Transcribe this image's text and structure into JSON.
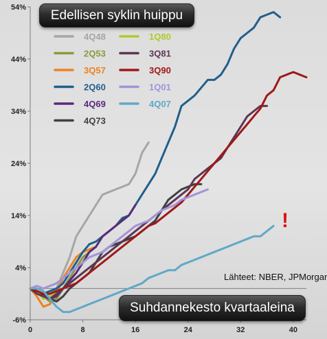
{
  "title": "Edellisen syklin huippu",
  "xlabel": "Suhdannekesto kvartaaleina",
  "source_note": "Lähteet: NBER, JPMorgan",
  "exclamation": "!",
  "chart_data": {
    "type": "line",
    "title": "Edellisen syklin huippu",
    "xlabel": "Suhdannekesto kvartaaleina",
    "ylabel": "",
    "xlim": [
      0,
      42
    ],
    "ylim": [
      -6,
      54
    ],
    "x_ticks": [
      0,
      8,
      16,
      24,
      32,
      40
    ],
    "y_ticks": [
      -6,
      4,
      14,
      24,
      34,
      44,
      54
    ],
    "y_tick_labels": [
      "-6%",
      "4%",
      "14%",
      "24%",
      "34%",
      "44%",
      "54%"
    ],
    "grid": false,
    "legend": "top-left",
    "series": [
      {
        "name": "4Q48",
        "color": "#a6a6a6",
        "x": [
          0,
          1,
          2,
          3,
          4,
          5,
          6,
          7,
          8,
          9,
          10,
          11,
          12,
          13,
          14,
          15,
          16,
          17,
          18
        ],
        "y": [
          0,
          -1,
          -1.5,
          -1,
          0,
          3,
          6,
          10,
          12,
          14,
          16,
          18,
          18.5,
          19,
          19.5,
          20,
          22,
          26,
          28
        ]
      },
      {
        "name": "2Q53",
        "color": "#8a9a3a",
        "x": [
          0,
          1,
          2,
          3,
          4,
          5,
          6,
          7,
          8,
          9,
          10
        ],
        "y": [
          0,
          -0.5,
          -1.5,
          -2.5,
          -2,
          0,
          2,
          4,
          6,
          7,
          8
        ]
      },
      {
        "name": "3Q57",
        "color": "#f08020",
        "x": [
          0,
          1,
          2,
          3,
          4,
          5,
          6,
          7,
          8,
          9,
          10
        ],
        "y": [
          0,
          -1.5,
          -3.5,
          -3,
          -1,
          2,
          4,
          6,
          7,
          7.5,
          8
        ]
      },
      {
        "name": "2Q60",
        "color": "#1f5f8b",
        "x": [
          0,
          1,
          2,
          3,
          4,
          5,
          6,
          7,
          8,
          9,
          10,
          11,
          12,
          13,
          14,
          15,
          16,
          17,
          18,
          19,
          20,
          21,
          22,
          23,
          24,
          25,
          26,
          27,
          28,
          29,
          30,
          31,
          32,
          33,
          34,
          35,
          36,
          37,
          38
        ],
        "y": [
          0,
          -1,
          -1,
          -0.5,
          0,
          1,
          3,
          5,
          7,
          8.5,
          9,
          10,
          11,
          12,
          13.5,
          14,
          16,
          18,
          20,
          22,
          25,
          28,
          31,
          35,
          36,
          37,
          38.5,
          40,
          40,
          41,
          43,
          46,
          48,
          49,
          50,
          52,
          52.5,
          53,
          52
        ]
      },
      {
        "name": "4Q69",
        "color": "#5a2a7a",
        "x": [
          0,
          1,
          2,
          3,
          4,
          5,
          6,
          7,
          8,
          9,
          10,
          11,
          12,
          13,
          14,
          15,
          16
        ],
        "y": [
          0,
          -0.5,
          -1,
          -2,
          -1.5,
          0,
          1.5,
          3,
          5,
          7,
          8,
          10,
          11,
          12,
          13,
          14,
          16
        ]
      },
      {
        "name": "4Q73",
        "color": "#404040",
        "x": [
          0,
          1,
          2,
          3,
          4,
          5,
          6,
          7,
          8,
          9,
          10,
          11,
          12,
          13,
          14,
          15,
          16,
          17,
          18,
          19,
          20,
          21,
          22,
          23,
          24,
          25,
          26
        ],
        "y": [
          0,
          -0.5,
          -1.5,
          -2,
          -2.5,
          -1.5,
          0,
          1,
          2,
          3,
          5,
          7,
          8,
          8.5,
          9,
          9.5,
          10,
          11,
          12,
          13,
          15,
          17,
          18,
          19,
          19.5,
          20,
          20
        ]
      },
      {
        "name": "1Q80",
        "color": "#b5c72a",
        "x": [
          0,
          1,
          2,
          3,
          4,
          5
        ],
        "y": [
          0,
          -0.5,
          -2,
          -1.5,
          -0.5,
          0
        ]
      },
      {
        "name": "3Q81",
        "color": "#5d3555",
        "x": [
          0,
          1,
          2,
          3,
          4,
          5,
          6,
          7,
          8,
          9,
          10,
          11,
          12,
          13,
          14,
          15,
          16,
          17,
          18,
          19,
          20,
          21,
          22,
          23,
          24,
          25,
          26,
          27,
          28,
          29,
          30,
          31,
          32,
          33,
          34,
          35,
          36
        ],
        "y": [
          0,
          -1,
          -1.5,
          -2,
          -1,
          0,
          1,
          2,
          3,
          4,
          5,
          6,
          7,
          8,
          9,
          10,
          11,
          12,
          13,
          14,
          15,
          16,
          17,
          18,
          19,
          21,
          22,
          23,
          24,
          25,
          27,
          29,
          31,
          33,
          34,
          35,
          35
        ]
      },
      {
        "name": "3Q90",
        "color": "#a01818",
        "x": [
          0,
          1,
          2,
          3,
          4,
          5,
          6,
          7,
          8,
          9,
          10,
          11,
          12,
          13,
          14,
          15,
          16,
          17,
          18,
          19,
          20,
          21,
          22,
          23,
          24,
          25,
          26,
          27,
          28,
          29,
          30,
          31,
          32,
          33,
          34,
          35,
          36,
          37,
          38,
          39,
          40,
          41,
          42
        ],
        "y": [
          0,
          -0.5,
          -1,
          -1,
          -0.5,
          0,
          0.5,
          1,
          2,
          3,
          4,
          5,
          6,
          7,
          8,
          9,
          10,
          11,
          12,
          12.5,
          13.5,
          14.5,
          15.5,
          16.5,
          18,
          19.5,
          21,
          22.5,
          24,
          25.5,
          27,
          28.5,
          30,
          31.5,
          33,
          34.5,
          37,
          38,
          40.5,
          41,
          41.5,
          41,
          40.5
        ]
      },
      {
        "name": "1Q01",
        "color": "#a293d8",
        "x": [
          0,
          1,
          2,
          3,
          4,
          5,
          6,
          7,
          8,
          9,
          10,
          11,
          12,
          13,
          14,
          15,
          16,
          17,
          18,
          19,
          20,
          21,
          22,
          23,
          24,
          25,
          26,
          27
        ],
        "y": [
          0,
          0.5,
          0,
          0.5,
          1,
          2,
          3,
          4,
          5,
          6,
          6.5,
          7,
          8,
          9,
          10,
          11,
          12,
          12.5,
          13,
          14,
          15,
          15.5,
          16,
          17,
          17.5,
          18,
          18.5,
          19
        ]
      },
      {
        "name": "4Q07",
        "color": "#5fa8c8",
        "x": [
          0,
          1,
          2,
          3,
          4,
          5,
          6,
          7,
          8,
          9,
          10,
          11,
          12,
          13,
          14,
          15,
          16,
          17,
          18,
          19,
          20,
          21,
          22,
          23,
          24,
          25,
          26,
          27,
          28,
          29,
          30,
          31,
          32,
          33,
          34,
          35,
          36,
          37
        ],
        "y": [
          0,
          0,
          -0.5,
          -2,
          -3.5,
          -4.5,
          -4.5,
          -4,
          -3.5,
          -3,
          -2.5,
          -2,
          -1.5,
          -1,
          -0.5,
          0,
          0.5,
          1,
          2,
          2.5,
          3,
          3.5,
          3.5,
          4.5,
          5,
          5.5,
          6,
          6.5,
          7,
          7.5,
          8,
          8.5,
          9,
          9.5,
          10,
          10,
          11,
          12
        ]
      }
    ]
  }
}
